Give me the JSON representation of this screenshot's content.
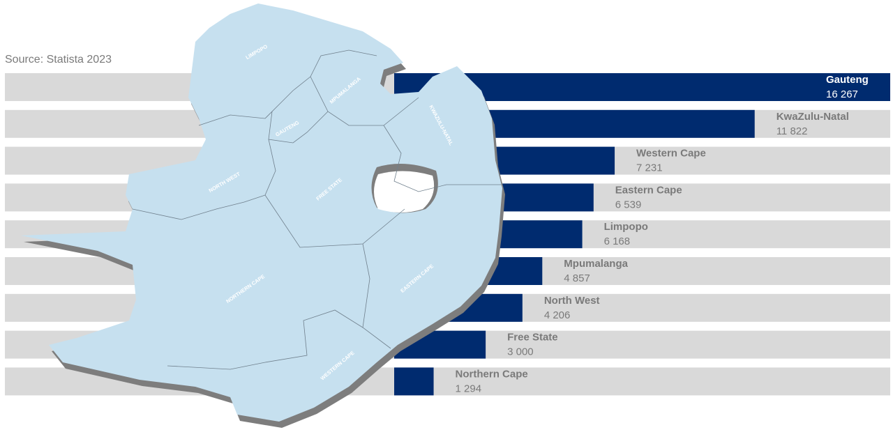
{
  "chart_data": {
    "type": "bar",
    "orientation": "horizontal",
    "source": "Source: Statista 2023",
    "categories": [
      "Gauteng",
      "KwaZulu-Natal",
      "Western Cape",
      "Eastern Cape",
      "Limpopo",
      "Mpumalanga",
      "North West",
      "Free State",
      "Northern Cape"
    ],
    "values": [
      16267,
      11822,
      7231,
      6539,
      6168,
      4857,
      4206,
      3000,
      1294
    ],
    "value_labels": [
      "16 267",
      "11 822",
      "7 231",
      "6 539",
      "6 168",
      "4 857",
      "4 206",
      "3 000",
      "1 294"
    ],
    "color": "#002b6f",
    "background_color": "#d9d9d9",
    "map_labels": [
      "LIMPOPO",
      "MPUMALANGA",
      "GAUTENG",
      "KWAZULU-NATAL",
      "NORTH WEST",
      "FREE STATE",
      "NORTHERN CAPE",
      "EASTERN CAPE",
      "WESTERN CAPE"
    ]
  }
}
